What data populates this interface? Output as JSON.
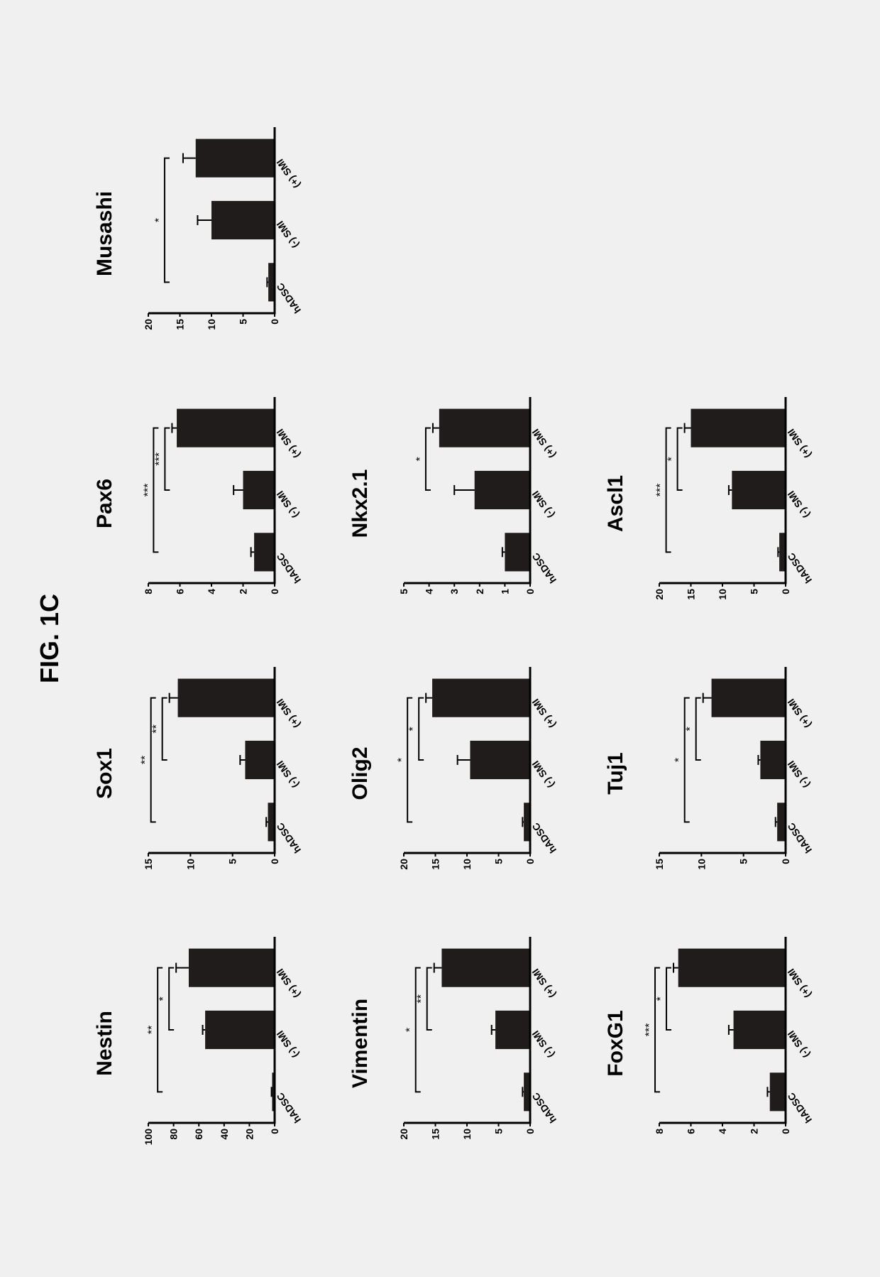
{
  "title": "FIG. 1C",
  "categories": [
    "hADSC",
    "(-) SMI",
    "(+) SMI"
  ],
  "bar_color": "#201c1c",
  "axis_color": "#000000",
  "bg_color": "#f0f0f0",
  "title_fontsize": 30,
  "tick_fontsize": 14,
  "catlabel_fontsize": 14,
  "sig_fontsize": 16,
  "charts": [
    {
      "name": "Nestin",
      "ymax": 100,
      "ytick": 20,
      "vals": [
        2,
        55,
        68
      ],
      "errs": [
        0.5,
        2,
        10
      ],
      "sig1": "*",
      "sig2": "**"
    },
    {
      "name": "Sox1",
      "ymax": 15,
      "ytick": 5,
      "vals": [
        0.8,
        3.5,
        11.5
      ],
      "errs": [
        0.2,
        0.6,
        1
      ],
      "sig1": "**",
      "sig2": "**"
    },
    {
      "name": "Pax6",
      "ymax": 8,
      "ytick": 2,
      "vals": [
        1.3,
        2.0,
        6.2
      ],
      "errs": [
        0.2,
        0.6,
        0.3
      ],
      "sig1": "***",
      "sig2": "***"
    },
    {
      "name": "Musashi",
      "ymax": 20,
      "ytick": 5,
      "vals": [
        1,
        10,
        12.5
      ],
      "errs": [
        0.2,
        2.2,
        2.0
      ],
      "sig1": "",
      "sig2": "*"
    },
    {
      "name": "Vimentin",
      "ymax": 20,
      "ytick": 5,
      "vals": [
        1,
        5.5,
        14
      ],
      "errs": [
        0.2,
        0.6,
        1.2
      ],
      "sig1": "**",
      "sig2": "*"
    },
    {
      "name": "Olig2",
      "ymax": 20,
      "ytick": 5,
      "vals": [
        1,
        9.5,
        15.5
      ],
      "errs": [
        0.2,
        2,
        1
      ],
      "sig1": "*",
      "sig2": "*"
    },
    {
      "name": "Nkx2.1",
      "ymax": 5,
      "ytick": 1,
      "vals": [
        1,
        2.2,
        3.6
      ],
      "errs": [
        0.1,
        0.8,
        0.25
      ],
      "sig1": "*",
      "sig2": ""
    },
    null,
    {
      "name": "FoxG1",
      "ymax": 8,
      "ytick": 2,
      "vals": [
        1,
        3.3,
        6.8
      ],
      "errs": [
        0.15,
        0.3,
        0.3
      ],
      "sig1": "*",
      "sig2": "***"
    },
    {
      "name": "Tuj1",
      "ymax": 15,
      "ytick": 5,
      "vals": [
        1,
        3.0,
        8.8
      ],
      "errs": [
        0.2,
        0.25,
        1
      ],
      "sig1": "*",
      "sig2": "*"
    },
    {
      "name": "Ascl1",
      "ymax": 20,
      "ytick": 5,
      "vals": [
        1,
        8.5,
        15
      ],
      "errs": [
        0.2,
        0.5,
        1
      ],
      "sig1": "*",
      "sig2": "***"
    },
    null
  ]
}
